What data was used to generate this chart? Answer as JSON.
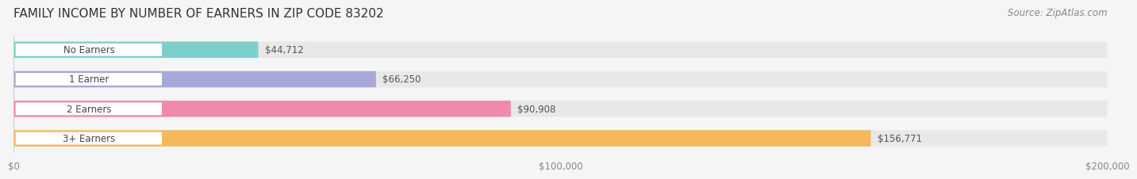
{
  "title": "FAMILY INCOME BY NUMBER OF EARNERS IN ZIP CODE 83202",
  "source": "Source: ZipAtlas.com",
  "categories": [
    "No Earners",
    "1 Earner",
    "2 Earners",
    "3+ Earners"
  ],
  "values": [
    44712,
    66250,
    90908,
    156771
  ],
  "bar_colors": [
    "#7dcfcb",
    "#a8a8d8",
    "#f08aaa",
    "#f5b95a"
  ],
  "label_colors": [
    "#7dcfcb",
    "#a8a8d8",
    "#f08aaa",
    "#f5b95a"
  ],
  "value_labels": [
    "$44,712",
    "$66,250",
    "$90,908",
    "$156,771"
  ],
  "xlim": [
    0,
    200000
  ],
  "xtick_values": [
    0,
    100000,
    200000
  ],
  "xtick_labels": [
    "$0",
    "$100,000",
    "$200,000"
  ],
  "background_color": "#f5f5f5",
  "bar_background_color": "#e8e8e8",
  "title_fontsize": 11,
  "source_fontsize": 8.5,
  "bar_height": 0.55,
  "bar_gap": 0.15
}
